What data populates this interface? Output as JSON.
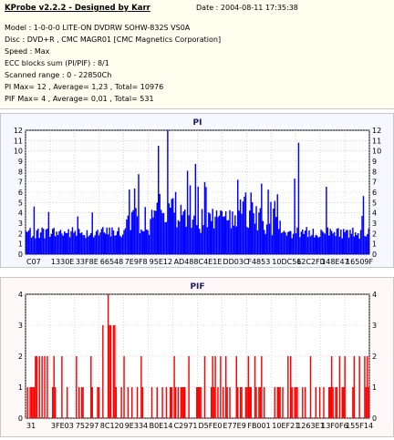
{
  "info": {
    "title": "KProbe v2.2.2 - Designed by Karr",
    "date": "Date : 2004-08-11 17:35:38",
    "lines": [
      "Model : 1-0-0-0 LITE-ON DVDRW SOHW-832S  VS0A",
      "Disc : DVD+R , CMC MAGR01 [CMC Magnetics Corporation]",
      "Speed : Max",
      "ECC blocks sum (PI/PIF) : 8/1",
      "Scanned range : 0 - 22850Ch",
      "PI Max= 12 , Average= 1,23 , Total= 10976",
      "PIF Max= 4 , Average= 0,01 , Total= 531"
    ]
  },
  "chart_data": [
    {
      "type": "bar",
      "title": "PI",
      "color": "#0000ff",
      "ylim": [
        0,
        12
      ],
      "yticks": [
        0,
        1,
        2,
        3,
        4,
        5,
        6,
        7,
        8,
        9,
        10,
        11,
        12
      ],
      "xtick_labels": [
        "C07",
        "1330E",
        "33F8E",
        "66548",
        "7E9F8",
        "95E12",
        "AD488",
        "C4E1E",
        "DD03C",
        "F4853",
        "10DC56",
        "12C2FD",
        "148E47",
        "16509F"
      ],
      "bins": 260,
      "baseline_level": 2,
      "max": 12,
      "max_position": 0.41,
      "activity_region": [
        0.29,
        0.74
      ],
      "grid": true
    },
    {
      "type": "bar",
      "title": "PIF",
      "color": "#ff0000",
      "ylim": [
        0,
        4
      ],
      "yticks": [
        0,
        1,
        2,
        3,
        4
      ],
      "xtick_labels": [
        "31",
        "3FE03",
        "75297",
        "8C120",
        "9E334",
        "B0E14",
        "C2971",
        "D5FE0",
        "E77E9",
        "FB001",
        "10EF21",
        "1263E1",
        "13F0F6",
        "155F14"
      ],
      "bins": 260,
      "max": 4,
      "max_position": 0.24,
      "grid": true
    }
  ]
}
